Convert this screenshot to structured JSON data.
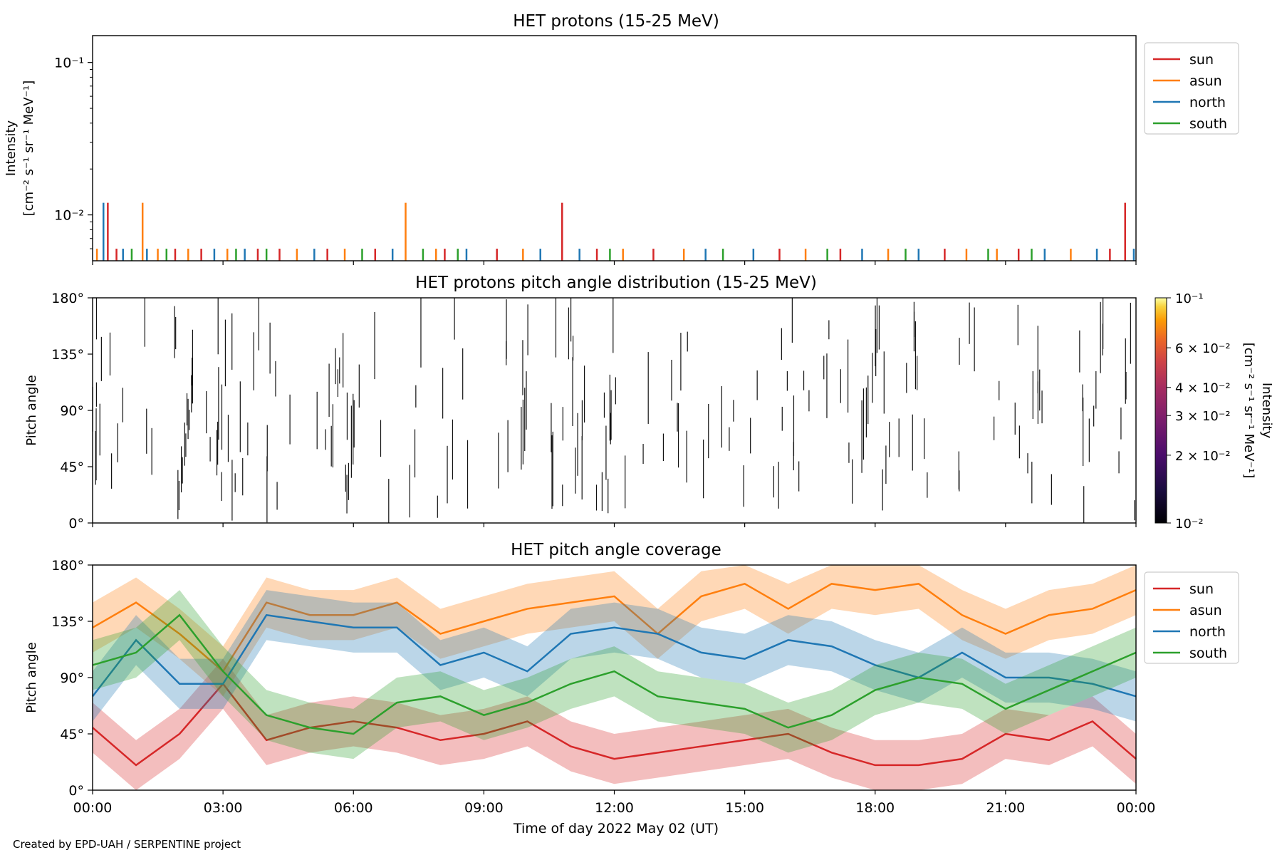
{
  "footer": "Created by EPD-UAH / SERPENTINE project",
  "colors": {
    "sun": "#d62728",
    "asun": "#ff7f0e",
    "north": "#1f77b4",
    "south": "#2ca02c"
  },
  "xaxis": {
    "label": "Time of day 2022 May 02 (UT)",
    "ticks": [
      "00:00",
      "03:00",
      "06:00",
      "09:00",
      "12:00",
      "15:00",
      "18:00",
      "21:00",
      "00:00"
    ]
  },
  "chart_data": [
    {
      "type": "line",
      "title": "HET protons (15-25 MeV)",
      "ylabel_line1": "Intensity",
      "ylabel_line2": "[cm⁻² s⁻¹ sr⁻¹ MeV⁻¹]",
      "yscale": "log",
      "ylim": [
        0.005,
        0.15
      ],
      "yticks": [
        {
          "value": 0.1,
          "label": "10⁻¹"
        },
        {
          "value": 0.01,
          "label": "10⁻²"
        }
      ],
      "legend": {
        "placement": "outside-right",
        "entries": [
          "sun",
          "asun",
          "north",
          "south"
        ]
      },
      "x_unit": "hours",
      "xlim": [
        0,
        24
      ],
      "series": [
        {
          "name": "sun",
          "spikes": [
            {
              "x": 0.35,
              "y": 0.012
            },
            {
              "x": 10.8,
              "y": 0.012
            },
            {
              "x": 23.75,
              "y": 0.012
            },
            {
              "x": 0.55,
              "y": 0.006
            },
            {
              "x": 1.9,
              "y": 0.006
            },
            {
              "x": 2.5,
              "y": 0.006
            },
            {
              "x": 3.8,
              "y": 0.006
            },
            {
              "x": 4.3,
              "y": 0.006
            },
            {
              "x": 5.4,
              "y": 0.006
            },
            {
              "x": 6.5,
              "y": 0.006
            },
            {
              "x": 8.1,
              "y": 0.006
            },
            {
              "x": 9.3,
              "y": 0.006
            },
            {
              "x": 11.6,
              "y": 0.006
            },
            {
              "x": 12.9,
              "y": 0.006
            },
            {
              "x": 15.8,
              "y": 0.006
            },
            {
              "x": 17.2,
              "y": 0.006
            },
            {
              "x": 19.6,
              "y": 0.006
            },
            {
              "x": 21.3,
              "y": 0.006
            },
            {
              "x": 23.4,
              "y": 0.006
            }
          ]
        },
        {
          "name": "asun",
          "spikes": [
            {
              "x": 1.15,
              "y": 0.012
            },
            {
              "x": 7.2,
              "y": 0.012
            },
            {
              "x": 0.1,
              "y": 0.006
            },
            {
              "x": 1.5,
              "y": 0.006
            },
            {
              "x": 2.2,
              "y": 0.006
            },
            {
              "x": 3.1,
              "y": 0.006
            },
            {
              "x": 4.7,
              "y": 0.006
            },
            {
              "x": 5.8,
              "y": 0.006
            },
            {
              "x": 7.9,
              "y": 0.006
            },
            {
              "x": 9.9,
              "y": 0.006
            },
            {
              "x": 12.2,
              "y": 0.006
            },
            {
              "x": 13.6,
              "y": 0.006
            },
            {
              "x": 16.4,
              "y": 0.006
            },
            {
              "x": 18.3,
              "y": 0.006
            },
            {
              "x": 20.1,
              "y": 0.006
            },
            {
              "x": 20.8,
              "y": 0.006
            },
            {
              "x": 22.5,
              "y": 0.006
            }
          ]
        },
        {
          "name": "north",
          "spikes": [
            {
              "x": 0.25,
              "y": 0.012
            },
            {
              "x": 0.7,
              "y": 0.006
            },
            {
              "x": 1.25,
              "y": 0.006
            },
            {
              "x": 2.8,
              "y": 0.006
            },
            {
              "x": 3.5,
              "y": 0.006
            },
            {
              "x": 5.1,
              "y": 0.006
            },
            {
              "x": 6.9,
              "y": 0.006
            },
            {
              "x": 8.6,
              "y": 0.006
            },
            {
              "x": 10.3,
              "y": 0.006
            },
            {
              "x": 11.2,
              "y": 0.006
            },
            {
              "x": 14.1,
              "y": 0.006
            },
            {
              "x": 15.2,
              "y": 0.006
            },
            {
              "x": 17.7,
              "y": 0.006
            },
            {
              "x": 19.0,
              "y": 0.006
            },
            {
              "x": 21.9,
              "y": 0.006
            },
            {
              "x": 23.1,
              "y": 0.006
            },
            {
              "x": 23.95,
              "y": 0.006
            }
          ]
        },
        {
          "name": "south",
          "spikes": [
            {
              "x": 0.9,
              "y": 0.006
            },
            {
              "x": 1.7,
              "y": 0.006
            },
            {
              "x": 3.3,
              "y": 0.006
            },
            {
              "x": 4.0,
              "y": 0.006
            },
            {
              "x": 6.2,
              "y": 0.006
            },
            {
              "x": 7.6,
              "y": 0.006
            },
            {
              "x": 8.4,
              "y": 0.006
            },
            {
              "x": 11.9,
              "y": 0.006
            },
            {
              "x": 14.5,
              "y": 0.006
            },
            {
              "x": 16.9,
              "y": 0.006
            },
            {
              "x": 18.7,
              "y": 0.006
            },
            {
              "x": 20.6,
              "y": 0.006
            },
            {
              "x": 21.6,
              "y": 0.006
            }
          ]
        }
      ]
    },
    {
      "type": "heatmap",
      "title": "HET protons pitch angle distribution (15-25 MeV)",
      "ylabel": "Pitch angle",
      "ylim": [
        0,
        180
      ],
      "yticks": [
        "0°",
        "45°",
        "90°",
        "135°",
        "180°"
      ],
      "xlim": [
        0,
        24
      ],
      "colorbar": {
        "label_line1": "Intensity",
        "label_line2": "[cm⁻² s⁻¹ sr⁻¹ MeV⁻¹]",
        "scale": "log",
        "range": [
          0.01,
          0.1
        ],
        "ticks": [
          {
            "value": 0.1,
            "label": "10⁻¹"
          },
          {
            "value": 0.06,
            "label": "6 × 10⁻²"
          },
          {
            "value": 0.04,
            "label": "4 × 10⁻²"
          },
          {
            "value": 0.03,
            "label": "3 × 10⁻²"
          },
          {
            "value": 0.02,
            "label": "2 × 10⁻²"
          },
          {
            "value": 0.01,
            "label": "10⁻²"
          }
        ]
      }
    },
    {
      "type": "area",
      "title": "HET pitch angle coverage",
      "ylabel": "Pitch angle",
      "ylim": [
        0,
        180
      ],
      "yticks": [
        "0°",
        "45°",
        "90°",
        "135°",
        "180°"
      ],
      "xlim": [
        0,
        24
      ],
      "legend": {
        "placement": "outside-right",
        "entries": [
          "sun",
          "asun",
          "north",
          "south"
        ]
      },
      "series": [
        {
          "name": "sun",
          "x": [
            0,
            1,
            2,
            3,
            4,
            5,
            6,
            7,
            8,
            9,
            10,
            11,
            12,
            13,
            14,
            15,
            16,
            17,
            18,
            19,
            20,
            21,
            22,
            23,
            24
          ],
          "values": [
            50,
            20,
            45,
            85,
            40,
            50,
            55,
            50,
            40,
            45,
            55,
            35,
            25,
            30,
            35,
            40,
            45,
            30,
            20,
            20,
            25,
            45,
            40,
            55,
            25
          ],
          "band": 20
        },
        {
          "name": "asun",
          "x": [
            0,
            1,
            2,
            3,
            4,
            5,
            6,
            7,
            8,
            9,
            10,
            11,
            12,
            13,
            14,
            15,
            16,
            17,
            18,
            19,
            20,
            21,
            22,
            23,
            24
          ],
          "values": [
            130,
            150,
            125,
            95,
            150,
            140,
            140,
            150,
            125,
            135,
            145,
            150,
            155,
            125,
            155,
            165,
            145,
            165,
            160,
            165,
            140,
            125,
            140,
            145,
            160
          ],
          "band": 20
        },
        {
          "name": "north",
          "x": [
            0,
            1,
            2,
            3,
            4,
            5,
            6,
            7,
            8,
            9,
            10,
            11,
            12,
            13,
            14,
            15,
            16,
            17,
            18,
            19,
            20,
            21,
            22,
            23,
            24
          ],
          "values": [
            75,
            120,
            85,
            85,
            140,
            135,
            130,
            130,
            100,
            110,
            95,
            125,
            130,
            125,
            110,
            105,
            120,
            115,
            100,
            90,
            110,
            90,
            90,
            85,
            75
          ],
          "band": 20
        },
        {
          "name": "south",
          "x": [
            0,
            1,
            2,
            3,
            4,
            5,
            6,
            7,
            8,
            9,
            10,
            11,
            12,
            13,
            14,
            15,
            16,
            17,
            18,
            19,
            20,
            21,
            22,
            23,
            24
          ],
          "values": [
            100,
            110,
            140,
            95,
            60,
            50,
            45,
            70,
            75,
            60,
            70,
            85,
            95,
            75,
            70,
            65,
            50,
            60,
            80,
            90,
            85,
            65,
            80,
            95,
            110
          ],
          "band": 20
        }
      ]
    }
  ]
}
